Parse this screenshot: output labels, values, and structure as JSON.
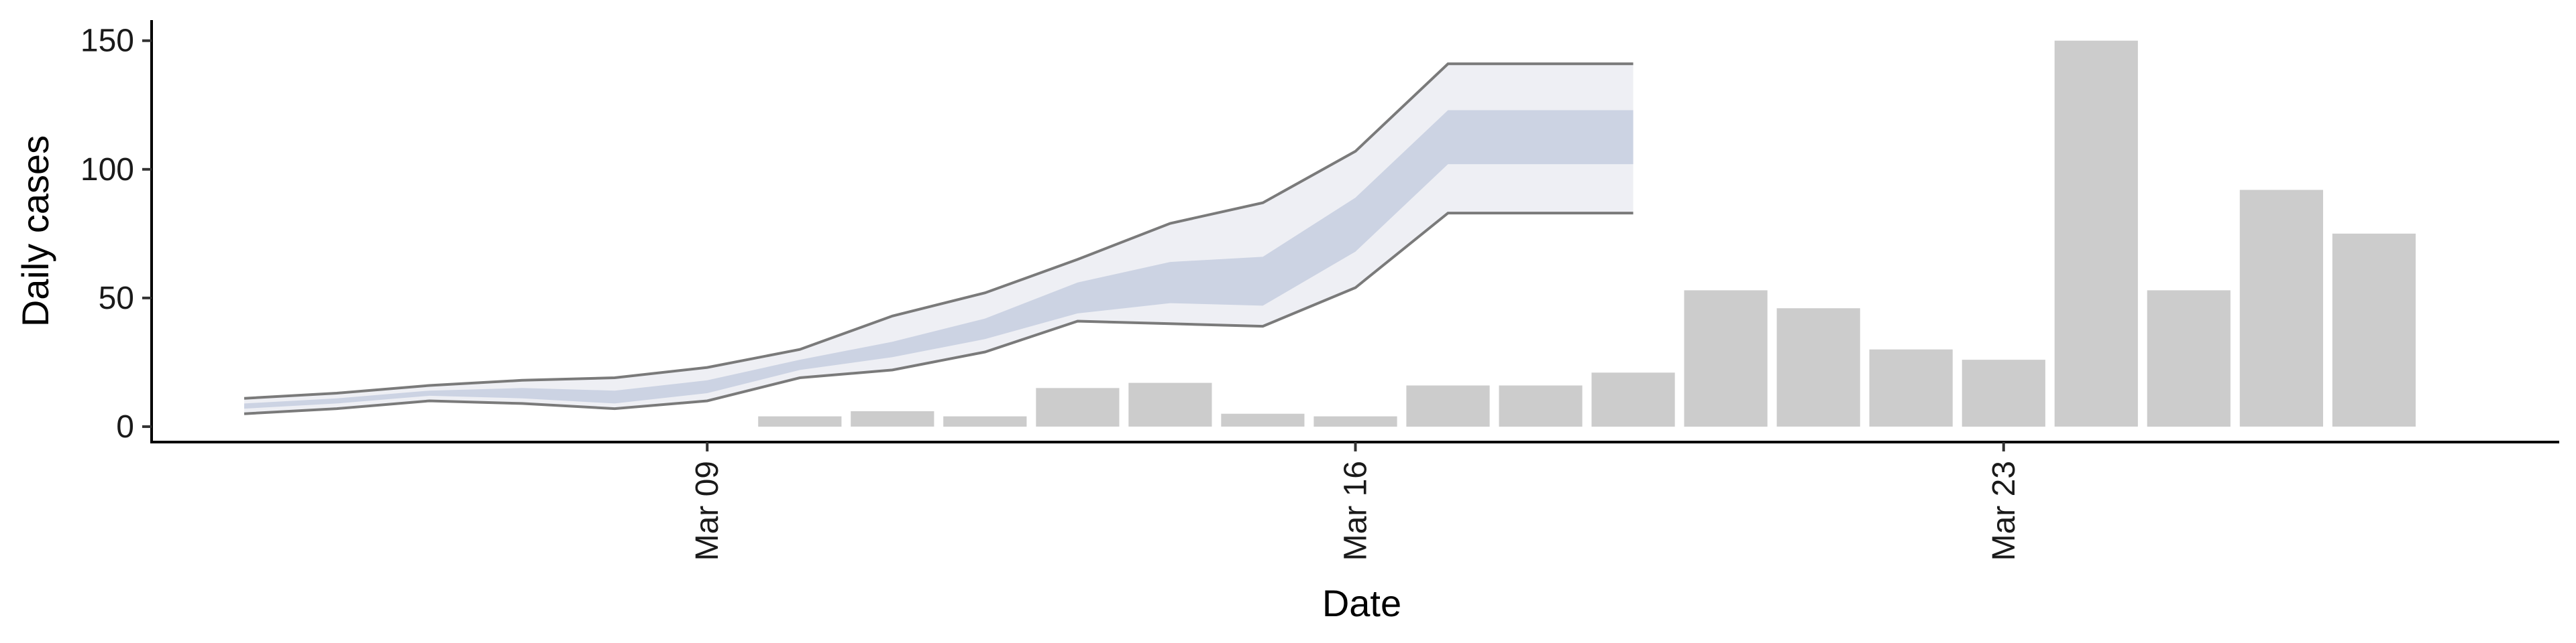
{
  "chart_data": {
    "type": "bar",
    "xlabel": "Date",
    "ylabel": "Daily cases",
    "xlim": [
      "2020-03-03",
      "2020-03-29"
    ],
    "ylim": [
      -6,
      158
    ],
    "yticks": [
      0,
      50,
      100,
      150
    ],
    "xticks": [
      {
        "date": "2020-03-09",
        "label": "Mar 09"
      },
      {
        "date": "2020-03-16",
        "label": "Mar 16"
      },
      {
        "date": "2020-03-23",
        "label": "Mar 23"
      }
    ],
    "grid": false,
    "legend": "none",
    "bars": {
      "color": "#cccccc",
      "dates": [
        "2020-03-10",
        "2020-03-11",
        "2020-03-12",
        "2020-03-13",
        "2020-03-14",
        "2020-03-15",
        "2020-03-16",
        "2020-03-17",
        "2020-03-18",
        "2020-03-19",
        "2020-03-20",
        "2020-03-21",
        "2020-03-22",
        "2020-03-23",
        "2020-03-24",
        "2020-03-25",
        "2020-03-26",
        "2020-03-27"
      ],
      "values": [
        4,
        6,
        4,
        15,
        17,
        5,
        4,
        16,
        16,
        21,
        53,
        46,
        30,
        26,
        150,
        53,
        92,
        75
      ]
    },
    "ribbons": {
      "dates": [
        "2020-03-04",
        "2020-03-05",
        "2020-03-06",
        "2020-03-07",
        "2020-03-08",
        "2020-03-09",
        "2020-03-10",
        "2020-03-11",
        "2020-03-12",
        "2020-03-13",
        "2020-03-14",
        "2020-03-15",
        "2020-03-16",
        "2020-03-17",
        "2020-03-18",
        "2020-03-19"
      ],
      "outer_color": "#eeeff4",
      "inner_color": "#ccd3e3",
      "outer_line_color": "#7a7a7a",
      "outer_lower": [
        5,
        7,
        10,
        9,
        7,
        10,
        19,
        22,
        29,
        41,
        40,
        39,
        54,
        83,
        83,
        83
      ],
      "outer_upper": [
        11,
        13,
        16,
        18,
        19,
        23,
        30,
        43,
        52,
        65,
        79,
        87,
        107,
        141,
        141,
        141
      ],
      "inner_lower": [
        7,
        9,
        12,
        11,
        9,
        13,
        22,
        27,
        34,
        44,
        48,
        47,
        68,
        102,
        102,
        102
      ],
      "inner_upper": [
        9,
        11,
        14,
        15,
        14,
        18,
        26,
        33,
        42,
        56,
        64,
        66,
        89,
        123,
        123,
        123
      ]
    }
  }
}
